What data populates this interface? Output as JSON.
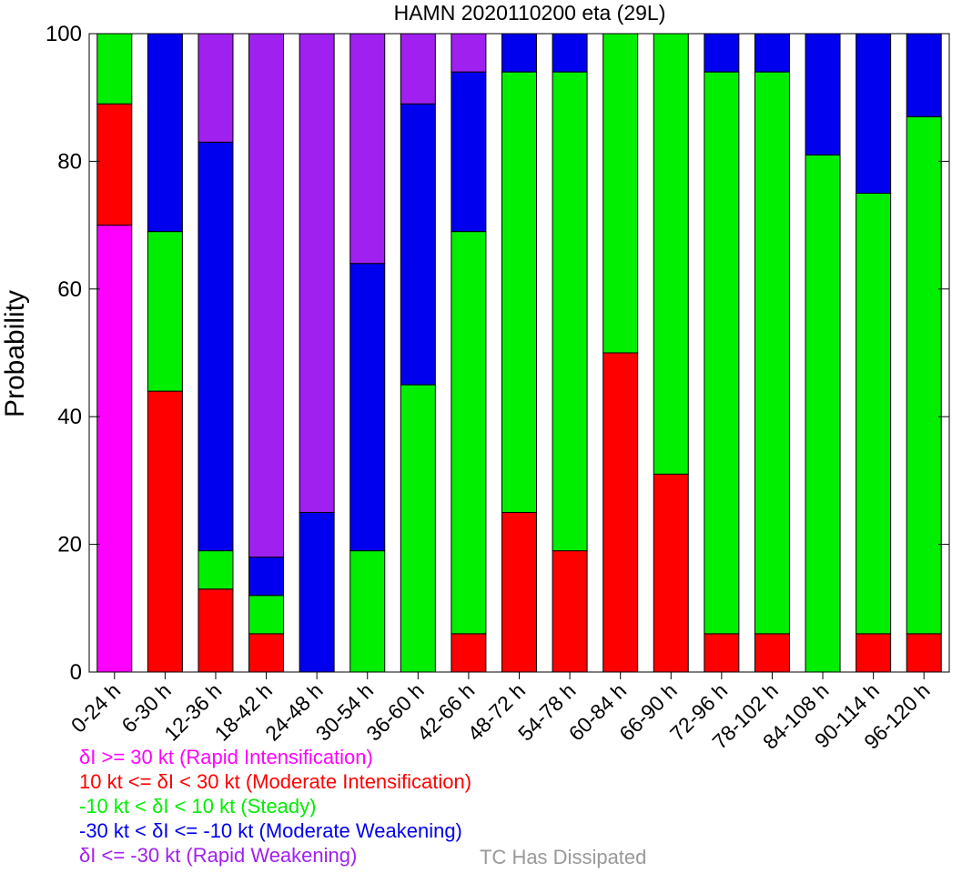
{
  "chart_data": {
    "type": "bar",
    "stacked": true,
    "title": "HAMN 2020110200 eta (29L)",
    "ylabel": "Probability",
    "xlabel": "",
    "ylim": [
      0,
      100
    ],
    "yticks": [
      "0",
      "20",
      "40",
      "60",
      "80",
      "100"
    ],
    "grid": false,
    "legend_position": "bottom-left",
    "categories": [
      "0-24 h",
      "6-30 h",
      "12-36 h",
      "18-42 h",
      "24-48 h",
      "30-54 h",
      "36-60 h",
      "42-66 h",
      "48-72 h",
      "54-78 h",
      "60-84 h",
      "66-90 h",
      "72-96 h",
      "78-102 h",
      "84-108 h",
      "90-114 h",
      "96-120 h"
    ],
    "series": [
      {
        "name": "δI >= 30 kt (Rapid Intensification)",
        "color": "#ff00ff",
        "values": [
          70,
          0,
          0,
          0,
          0,
          0,
          0,
          0,
          0,
          0,
          0,
          0,
          0,
          0,
          0,
          0,
          0
        ]
      },
      {
        "name": "10 kt <= δI < 30 kt (Moderate Intensification)",
        "color": "#ff0000",
        "values": [
          19,
          44,
          13,
          6,
          0,
          0,
          0,
          6,
          25,
          19,
          50,
          31,
          6,
          6,
          0,
          6,
          6
        ]
      },
      {
        "name": "-10 kt < δI < 10 kt (Steady)",
        "color": "#00ee00",
        "values": [
          11,
          25,
          6,
          6,
          0,
          19,
          45,
          63,
          69,
          75,
          50,
          69,
          88,
          88,
          81,
          69,
          81
        ]
      },
      {
        "name": "-30 kt < δI <= -10 kt (Moderate Weakening)",
        "color": "#0000ee",
        "values": [
          0,
          31,
          64,
          6,
          25,
          45,
          44,
          25,
          6,
          6,
          0,
          0,
          6,
          6,
          19,
          25,
          13
        ]
      },
      {
        "name": "δI <= -30 kt (Rapid Weakening)",
        "color": "#a020f0",
        "values": [
          0,
          0,
          17,
          82,
          75,
          36,
          11,
          6,
          0,
          0,
          0,
          0,
          0,
          0,
          0,
          0,
          0
        ]
      }
    ],
    "dissipated_label": "TC Has Dissipated",
    "dissipated_color": "#999999"
  }
}
